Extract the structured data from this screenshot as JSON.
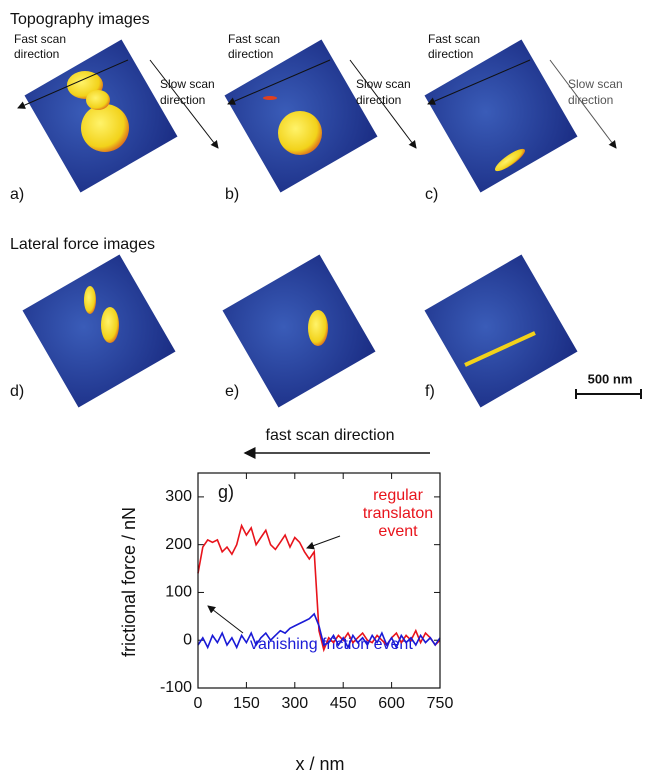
{
  "sections": [
    "Topography images",
    "Lateral force images"
  ],
  "panels": [
    "a)",
    "b)",
    "c)",
    "d)",
    "e)",
    "f)"
  ],
  "scan_labels": [
    {
      "fast": [
        "Fast scan",
        "direction"
      ],
      "slow": [
        "Slow scan",
        "direction"
      ]
    },
    {
      "fast": [
        "Fast scan",
        "direction"
      ],
      "slow": [
        "Slow scan",
        "direction"
      ]
    },
    {
      "fast": [
        "Fast scan",
        "direction"
      ],
      "slow": [
        "Slow scan",
        "direction"
      ]
    }
  ],
  "scale_bar": "500 nm",
  "chart_data": {
    "type": "line",
    "scan_direction": "fast scan direction",
    "panel_label": "g)",
    "annotations": {
      "regular": [
        "regular",
        "translaton",
        "event"
      ],
      "vanishing": "vanishing friction event"
    },
    "ylabel": "frictional force / nN",
    "xlabel": "x / nm",
    "xlim": [
      0,
      750
    ],
    "ylim": [
      -100,
      350
    ],
    "xticks": [
      0,
      150,
      300,
      450,
      600,
      750
    ],
    "yticks": [
      -100,
      0,
      100,
      200,
      300
    ],
    "x": [
      0,
      15,
      30,
      45,
      60,
      75,
      90,
      105,
      120,
      135,
      150,
      165,
      180,
      195,
      210,
      225,
      240,
      255,
      270,
      285,
      300,
      315,
      330,
      345,
      360,
      375,
      390,
      405,
      420,
      435,
      450,
      465,
      480,
      495,
      510,
      525,
      540,
      555,
      570,
      585,
      600,
      615,
      630,
      645,
      660,
      675,
      690,
      705,
      720,
      735,
      750
    ],
    "series": [
      {
        "color": "#e8141c",
        "values": [
          140,
          195,
          210,
          205,
          210,
          185,
          195,
          180,
          200,
          240,
          220,
          235,
          200,
          215,
          230,
          200,
          190,
          205,
          220,
          195,
          215,
          205,
          185,
          170,
          185,
          20,
          -20,
          5,
          -5,
          10,
          0,
          15,
          -5,
          5,
          15,
          0,
          -5,
          10,
          0,
          -10,
          5,
          15,
          -5,
          10,
          0,
          20,
          -5,
          15,
          5,
          -10,
          0
        ]
      },
      {
        "color": "#1a1ad6",
        "values": [
          -10,
          5,
          -15,
          10,
          -5,
          15,
          -10,
          5,
          -15,
          10,
          -5,
          15,
          -10,
          5,
          15,
          0,
          10,
          20,
          15,
          25,
          30,
          35,
          40,
          45,
          55,
          30,
          -10,
          -5,
          10,
          -10,
          5,
          -15,
          10,
          -5,
          5,
          -10,
          10,
          -5,
          15,
          -10,
          5,
          -15,
          10,
          -5,
          5,
          -10,
          10,
          -5,
          5,
          -10,
          5
        ]
      }
    ]
  }
}
